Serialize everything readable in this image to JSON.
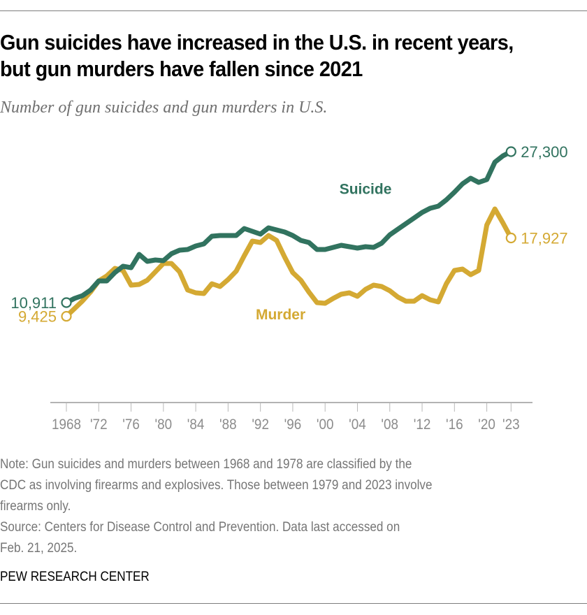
{
  "header": {
    "title": "Gun suicides have increased in the U.S. in recent years, but gun murders have fallen since 2021",
    "subtitle": "Number of gun suicides and gun murders in U.S."
  },
  "footer": {
    "note_line1": "Note: Gun suicides and murders between 1968 and 1978 are classified by the",
    "note_line2": "CDC as involving firearms and explosives. Those between 1979 and 2023 involve",
    "note_line3": "firearms only.",
    "source_line1": "Source: Centers for Disease Control and Prevention. Data last accessed on",
    "source_line2": "Feb. 21, 2025.",
    "brand": "PEW RESEARCH CENTER"
  },
  "chart_data": {
    "type": "line",
    "title": "Gun suicides have increased in the U.S. in recent years, but gun murders have fallen since 2021",
    "subtitle": "Number of gun suicides and gun murders in U.S.",
    "xlabel": "",
    "ylabel": "",
    "grid": false,
    "xlim": [
      1968,
      2023
    ],
    "ylim": [
      0,
      28000
    ],
    "x_ticks": [
      1968,
      1972,
      1976,
      1980,
      1984,
      1988,
      1992,
      1996,
      2000,
      2004,
      2008,
      2012,
      2016,
      2020,
      2023
    ],
    "x_tick_labels": [
      "1968",
      "'72",
      "'76",
      "'80",
      "'84",
      "'88",
      "'92",
      "'96",
      "'00",
      "'04",
      "'08",
      "'12",
      "'16",
      "'20",
      "'23"
    ],
    "x": [
      1968,
      1969,
      1970,
      1971,
      1972,
      1973,
      1974,
      1975,
      1976,
      1977,
      1978,
      1979,
      1980,
      1981,
      1982,
      1983,
      1984,
      1985,
      1986,
      1987,
      1988,
      1989,
      1990,
      1991,
      1992,
      1993,
      1994,
      1995,
      1996,
      1997,
      1998,
      1999,
      2000,
      2001,
      2002,
      2003,
      2004,
      2005,
      2006,
      2007,
      2008,
      2009,
      2010,
      2011,
      2012,
      2013,
      2014,
      2015,
      2016,
      2017,
      2018,
      2019,
      2020,
      2021,
      2022,
      2023
    ],
    "series": [
      {
        "name": "Suicide",
        "color": "#31735f",
        "start_label": "10,911",
        "end_label": "27,300",
        "values": [
          10911,
          11366,
          11670,
          12276,
          13263,
          13263,
          14173,
          14856,
          14704,
          16146,
          15387,
          15539,
          15463,
          16222,
          16601,
          16677,
          17056,
          17284,
          18118,
          18194,
          18194,
          18194,
          18953,
          18650,
          18346,
          19029,
          18802,
          18574,
          18194,
          17663,
          17435,
          16677,
          16677,
          16905,
          17132,
          16980,
          16829,
          16980,
          16905,
          17360,
          18270,
          18877,
          19484,
          20091,
          20698,
          21153,
          21381,
          22064,
          22898,
          23809,
          24416,
          23961,
          24264,
          26161,
          26844,
          27300
        ]
      },
      {
        "name": "Murder",
        "color": "#d4a933",
        "start_label": "9,425",
        "end_label": "17,927",
        "values": [
          9425,
          10260,
          11093,
          12079,
          13263,
          13809,
          14628,
          14401,
          12807,
          12883,
          13339,
          14249,
          15160,
          15160,
          14249,
          12276,
          11973,
          11897,
          12959,
          12655,
          13414,
          14325,
          15994,
          17587,
          17435,
          18194,
          17663,
          15842,
          14173,
          13339,
          12049,
          10911,
          10835,
          11366,
          11821,
          11973,
          11594,
          12352,
          12807,
          12655,
          12200,
          11518,
          11063,
          11063,
          11670,
          11214,
          10987,
          12959,
          14401,
          14552,
          13945,
          14401,
          19332,
          21077,
          19560,
          17927
        ]
      }
    ],
    "axis_color": "#b3b3b3",
    "tick_label_color": "#8c8c8c"
  }
}
